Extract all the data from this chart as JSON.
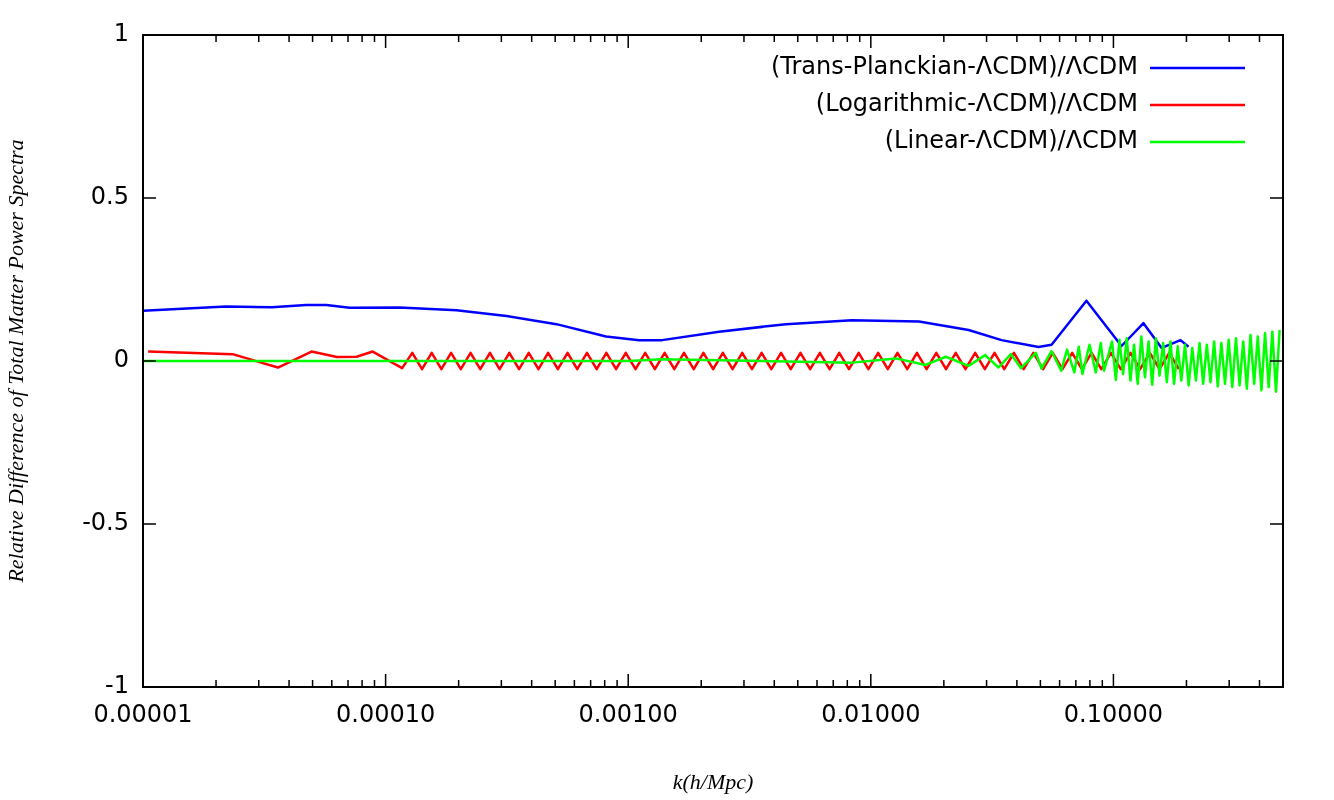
{
  "chart_data": {
    "type": "line",
    "xlabel": "k(h/Mpc)",
    "ylabel": "Relative Difference of Total Matter Power Spectra",
    "log": "x",
    "xlim": [
      1e-05,
      0.5
    ],
    "ylim": [
      -1,
      1
    ],
    "xticks": [
      {
        "value": 1e-05,
        "label": "0.00001"
      },
      {
        "value": 2e-05,
        "label": null
      },
      {
        "value": 3e-05,
        "label": null
      },
      {
        "value": 4e-05,
        "label": null
      },
      {
        "value": 5e-05,
        "label": null
      },
      {
        "value": 6e-05,
        "label": null
      },
      {
        "value": 7e-05,
        "label": null
      },
      {
        "value": 8e-05,
        "label": null
      },
      {
        "value": 9e-05,
        "label": null
      },
      {
        "value": 0.0001,
        "label": "0.00010"
      },
      {
        "value": 0.0002,
        "label": null
      },
      {
        "value": 0.0003,
        "label": null
      },
      {
        "value": 0.0004,
        "label": null
      },
      {
        "value": 0.0005,
        "label": null
      },
      {
        "value": 0.0006,
        "label": null
      },
      {
        "value": 0.0007,
        "label": null
      },
      {
        "value": 0.0008,
        "label": null
      },
      {
        "value": 0.0009,
        "label": null
      },
      {
        "value": 0.001,
        "label": "0.00100"
      },
      {
        "value": 0.002,
        "label": null
      },
      {
        "value": 0.003,
        "label": null
      },
      {
        "value": 0.004,
        "label": null
      },
      {
        "value": 0.005,
        "label": null
      },
      {
        "value": 0.006,
        "label": null
      },
      {
        "value": 0.007,
        "label": null
      },
      {
        "value": 0.008,
        "label": null
      },
      {
        "value": 0.009,
        "label": null
      },
      {
        "value": 0.01,
        "label": "0.01000"
      },
      {
        "value": 0.02,
        "label": null
      },
      {
        "value": 0.03,
        "label": null
      },
      {
        "value": 0.04,
        "label": null
      },
      {
        "value": 0.05,
        "label": null
      },
      {
        "value": 0.06,
        "label": null
      },
      {
        "value": 0.07,
        "label": null
      },
      {
        "value": 0.08,
        "label": null
      },
      {
        "value": 0.09,
        "label": null
      },
      {
        "value": 0.1,
        "label": "0.10000"
      },
      {
        "value": 0.2,
        "label": null
      },
      {
        "value": 0.3,
        "label": null
      },
      {
        "value": 0.4,
        "label": null
      },
      {
        "value": 0.5,
        "label": null
      }
    ],
    "yticks": [
      -1,
      -0.5,
      0,
      0.5,
      1
    ],
    "grid": false,
    "legend": "top right",
    "marker": "none",
    "line_style": "solid",
    "series": [
      {
        "name": "(Trans-Planckian-ΛCDM)/ΛCDM",
        "color": "#0000ff",
        "x": [
          1e-05,
          2.2e-05,
          3.4e-05,
          4.7e-05,
          5.7e-05,
          7.1e-05,
          0.000114,
          0.000196,
          0.000315,
          0.000506,
          0.00081,
          0.00111,
          0.00138,
          0.00237,
          0.00447,
          0.00835,
          0.0158,
          0.0253,
          0.0346,
          0.0491,
          0.0556,
          0.0774,
          0.108,
          0.133,
          0.158,
          0.189,
          0.204
        ],
        "values": [
          0.154,
          0.167,
          0.165,
          0.172,
          0.172,
          0.163,
          0.164,
          0.156,
          0.138,
          0.113,
          0.075,
          0.064,
          0.064,
          0.09,
          0.113,
          0.125,
          0.121,
          0.095,
          0.064,
          0.043,
          0.05,
          0.185,
          0.046,
          0.116,
          0.04,
          0.064,
          0.044
        ]
      },
      {
        "name": "(Logarithmic-ΛCDM)/ΛCDM",
        "color": "#ff0000",
        "x": [
          1.05e-05,
          2.34e-05,
          3.6e-05,
          4.95e-05,
          6.3e-05,
          7.6e-05,
          8.85e-05,
          0.000117,
          0.0001288,
          0.0001413,
          0.0001549,
          0.0001698,
          0.0001862,
          0.0002042,
          0.0002239,
          0.0002455,
          0.0002692,
          0.0002951,
          0.0003236,
          0.0003548,
          0.000389,
          0.0004266,
          0.0004677,
          0.0005129,
          0.0005623,
          0.0006166,
          0.0006761,
          0.0007413,
          0.0008128,
          0.0008913,
          0.0009772,
          0.001072,
          0.001175,
          0.001288,
          0.001413,
          0.001549,
          0.001698,
          0.001862,
          0.002042,
          0.002239,
          0.002455,
          0.002692,
          0.002951,
          0.003236,
          0.003548,
          0.00389,
          0.004266,
          0.004677,
          0.005129,
          0.005623,
          0.006166,
          0.006761,
          0.007413,
          0.008128,
          0.008913,
          0.009772,
          0.01072,
          0.01175,
          0.01288,
          0.01413,
          0.01549,
          0.01698,
          0.01862,
          0.02042,
          0.02239,
          0.02455,
          0.02692,
          0.02951,
          0.03236,
          0.03548,
          0.0389,
          0.04266,
          0.04677,
          0.05129,
          0.05623,
          0.06166,
          0.06761,
          0.07413,
          0.08128,
          0.08913,
          0.09772,
          0.1072,
          0.1175,
          0.1288,
          0.1413,
          0.1549,
          0.1698,
          0.1862
        ],
        "values": [
          0.029,
          0.021,
          -0.02,
          0.029,
          0.012,
          0.013,
          0.029,
          -0.022,
          0.025,
          -0.025,
          0.025,
          -0.025,
          0.025,
          -0.025,
          0.025,
          -0.025,
          0.025,
          -0.025,
          0.025,
          -0.025,
          0.025,
          -0.025,
          0.025,
          -0.025,
          0.025,
          -0.025,
          0.025,
          -0.025,
          0.025,
          -0.025,
          0.025,
          -0.025,
          0.025,
          -0.025,
          0.025,
          -0.025,
          0.025,
          -0.025,
          0.025,
          -0.025,
          0.025,
          -0.025,
          0.025,
          -0.025,
          0.025,
          -0.025,
          0.025,
          -0.025,
          0.025,
          -0.025,
          0.025,
          -0.025,
          0.025,
          -0.025,
          0.025,
          -0.025,
          0.025,
          -0.025,
          0.025,
          -0.025,
          0.025,
          -0.025,
          0.025,
          -0.025,
          0.025,
          -0.025,
          0.025,
          -0.025,
          0.025,
          -0.025,
          0.025,
          -0.025,
          0.025,
          -0.025,
          0.025,
          -0.025,
          0.025,
          -0.025,
          0.025,
          -0.025,
          0.025,
          -0.025,
          0.025,
          -0.025,
          0.025,
          -0.025,
          0.025,
          -0.025
        ]
      },
      {
        "name": "(Linear-ΛCDM)/ΛCDM",
        "color": "#00ff00",
        "x": [
          1e-05,
          0.001,
          0.00138,
          0.00835,
          0.0127,
          0.0168,
          0.0204,
          0.0253,
          0.0296,
          0.0336,
          0.0378,
          0.0416,
          0.0479,
          0.0505,
          0.0556,
          0.0609,
          0.0644,
          0.069,
          0.072,
          0.0745,
          0.0797,
          0.0846,
          0.0887,
          0.0915,
          0.0987,
          0.1023,
          0.1059,
          0.1096,
          0.1135,
          0.1175,
          0.1216,
          0.1259,
          0.1303,
          0.1349,
          0.1396,
          0.1445,
          0.1496,
          0.1549,
          0.1603,
          0.166,
          0.1718,
          0.1778,
          0.1841,
          0.1905,
          0.1972,
          0.2042,
          0.2113,
          0.2188,
          0.2265,
          0.2344,
          0.2427,
          0.2512,
          0.26,
          0.2692,
          0.2786,
          0.2884,
          0.2985,
          0.309,
          0.3199,
          0.3311,
          0.3428,
          0.3548,
          0.3673,
          0.3802,
          0.3936,
          0.4074,
          0.4217,
          0.4365,
          0.4519,
          0.4677,
          0.4842
        ],
        "values": [
          0,
          0,
          0.005,
          -0.005,
          0.008,
          -0.012,
          0.013,
          -0.015,
          0.018,
          -0.02,
          0.021,
          -0.022,
          0.025,
          -0.023,
          0.03,
          -0.03,
          0.035,
          -0.035,
          0.044,
          -0.04,
          0.05,
          -0.035,
          0.055,
          -0.03,
          0.06,
          -0.058,
          0.065,
          -0.04,
          0.07,
          -0.06,
          0.05,
          -0.07,
          0.075,
          -0.05,
          0.06,
          -0.073,
          0.07,
          -0.045,
          0.055,
          -0.065,
          0.06,
          -0.07,
          0.045,
          -0.06,
          0.05,
          -0.075,
          0.04,
          -0.06,
          0.055,
          -0.07,
          0.05,
          -0.065,
          0.06,
          -0.078,
          0.055,
          -0.07,
          0.065,
          -0.08,
          0.07,
          -0.075,
          0.06,
          -0.085,
          0.08,
          -0.07,
          0.075,
          -0.09,
          0.085,
          -0.08,
          0.09,
          -0.094,
          0.095
        ]
      }
    ]
  }
}
